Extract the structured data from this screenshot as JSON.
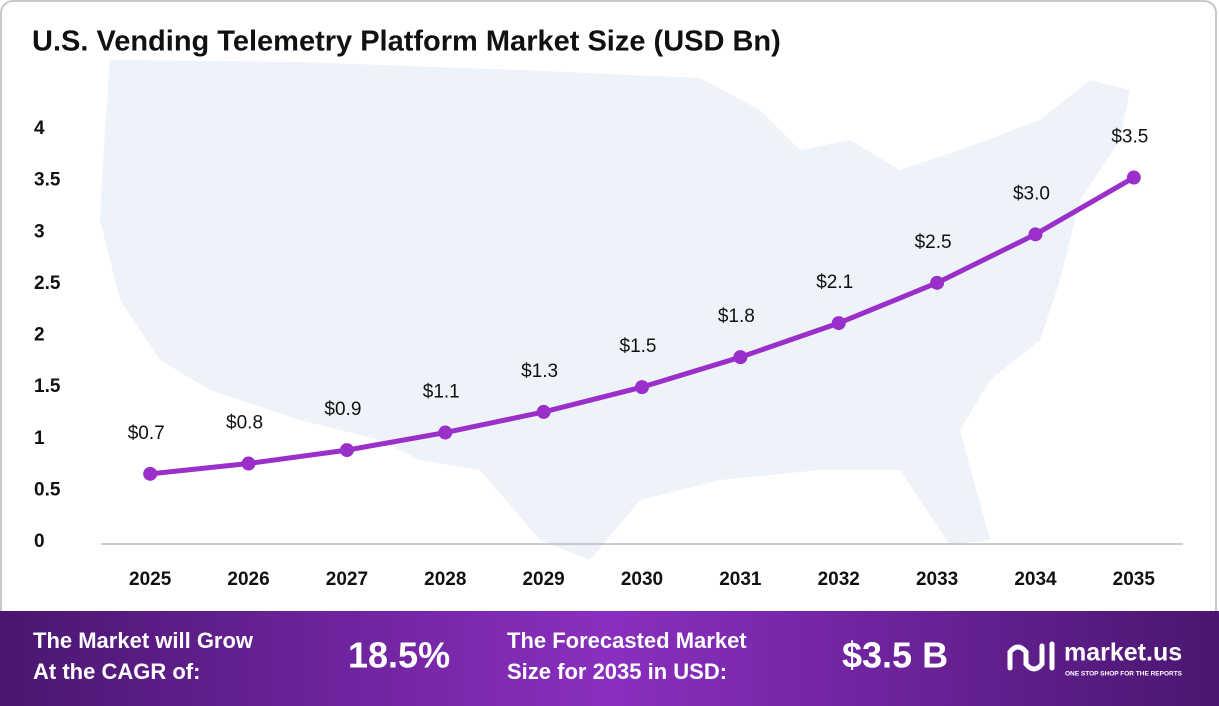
{
  "chart_data": {
    "type": "line",
    "title": "U.S. Vending Telemetry Platform Market Size (USD Bn)",
    "categories": [
      "2025",
      "2026",
      "2027",
      "2028",
      "2029",
      "2030",
      "2031",
      "2032",
      "2033",
      "2034",
      "2035"
    ],
    "values": [
      0.66,
      0.76,
      0.89,
      1.06,
      1.26,
      1.5,
      1.79,
      2.12,
      2.51,
      2.98,
      3.53
    ],
    "value_labels": [
      "$0.7",
      "$0.8",
      "$0.9",
      "$1.1",
      "$1.3",
      "$1.5",
      "$1.8",
      "$2.1",
      "$2.5",
      "$3.0",
      "$3.5"
    ],
    "color": "#9b2fc9",
    "ylim": [
      0,
      4
    ],
    "yticks": [
      0,
      0.5,
      1,
      1.5,
      2,
      2.5,
      3,
      3.5,
      4
    ],
    "grid": false
  },
  "footer": {
    "cagr_label": [
      "The Market will Grow",
      "At the CAGR of:"
    ],
    "cagr_value": "18.5%",
    "forecast_label": [
      "The Forecasted Market",
      "Size for 2035 in USD:"
    ],
    "forecast_value": "$3.5 B",
    "brand": "market.us",
    "tagline": "ONE STOP SHOP FOR THE REPORTS"
  }
}
